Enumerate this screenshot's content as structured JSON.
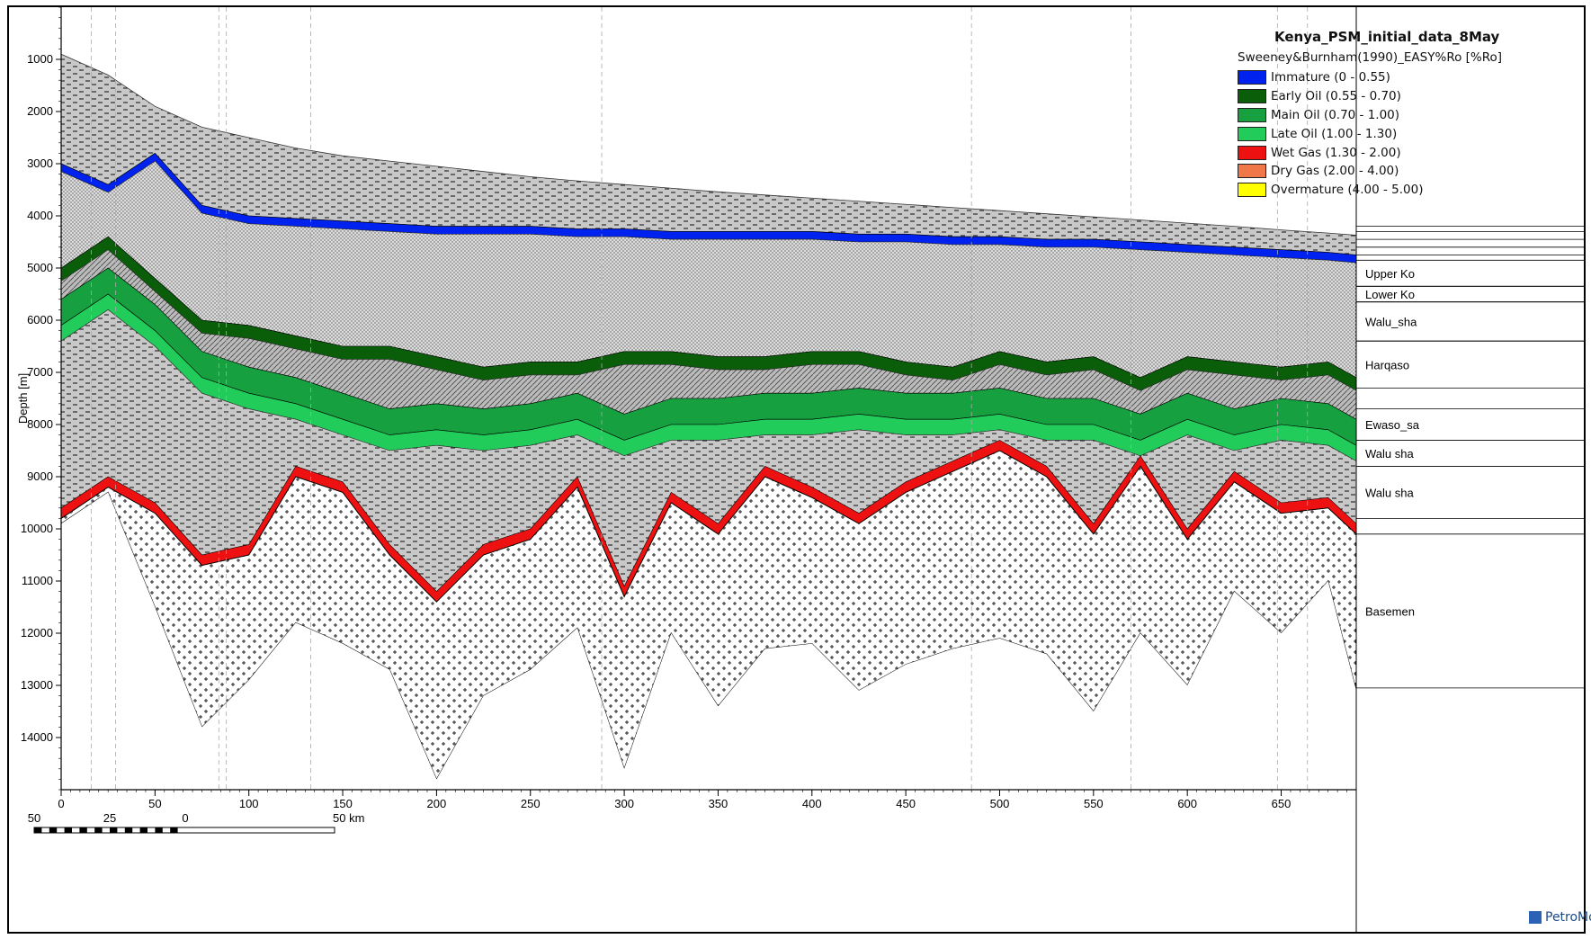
{
  "chart_data": {
    "type": "area",
    "title": "Kenya_PSM_initial_data_8May",
    "property_label": "Sweeney&Burnham(1990)_EASY%Ro [%Ro]",
    "xlabel": "",
    "ylabel": "Depth [m]",
    "xlim": [
      0,
      690
    ],
    "ylim": [
      15000,
      0
    ],
    "x_ticks": [
      "0",
      "50",
      "100",
      "150",
      "200",
      "250",
      "300",
      "350",
      "400",
      "450",
      "500",
      "550",
      "600",
      "650"
    ],
    "y_ticks": [
      "1000",
      "2000",
      "3000",
      "4000",
      "5000",
      "6000",
      "7000",
      "8000",
      "9000",
      "10000",
      "11000",
      "12000",
      "13000",
      "14000"
    ],
    "grid": "vertical dashed",
    "legend_position": "top-right",
    "legend": [
      {
        "label": "Immature (0 - 0.55)",
        "color": "#0022ee"
      },
      {
        "label": "Early Oil (0.55 - 0.70)",
        "color": "#0a5e0a"
      },
      {
        "label": "Main Oil (0.70 - 1.00)",
        "color": "#17a040"
      },
      {
        "label": "Late Oil (1.00 - 1.30)",
        "color": "#22cc5a"
      },
      {
        "label": "Wet Gas (1.30 - 2.00)",
        "color": "#ee1111"
      },
      {
        "label": "Dry Gas (2.00 - 4.00)",
        "color": "#f07848"
      },
      {
        "label": "Overmature (4.00 - 5.00)",
        "color": "#ffff00"
      }
    ],
    "layers": [
      "Upper Ko",
      "Lower Ko",
      "Walu_sha",
      "Harqaso",
      "Ewaso_sa",
      "Walu sha",
      "Walu sha",
      "Basemen"
    ],
    "surfaces": {
      "x": [
        0,
        25,
        50,
        75,
        100,
        125,
        150,
        175,
        200,
        225,
        250,
        275,
        300,
        325,
        350,
        375,
        400,
        425,
        450,
        475,
        500,
        525,
        550,
        575,
        600,
        625,
        650,
        675,
        690
      ],
      "top": [
        900,
        1300,
        1900,
        2300,
        2500,
        2700,
        2850,
        2950,
        3050,
        3150,
        3250,
        3330,
        3400,
        3470,
        3540,
        3600,
        3660,
        3720,
        3780,
        3840,
        3900,
        3960,
        4020,
        4080,
        4140,
        4200,
        4270,
        4330,
        4370
      ],
      "immature_top": [
        3000,
        3400,
        2800,
        3800,
        4000,
        4050,
        4100,
        4150,
        4200,
        4200,
        4200,
        4250,
        4250,
        4300,
        4300,
        4300,
        4300,
        4350,
        4350,
        4400,
        4400,
        4450,
        4450,
        4500,
        4550,
        4600,
        4650,
        4700,
        4750
      ],
      "early_oil_top": [
        5000,
        4400,
        5200,
        6000,
        6100,
        6300,
        6500,
        6500,
        6700,
        6900,
        6800,
        6800,
        6600,
        6600,
        6700,
        6700,
        6600,
        6600,
        6800,
        6900,
        6600,
        6800,
        6700,
        7100,
        6700,
        6800,
        6900,
        6800,
        7100
      ],
      "main_oil_top": [
        5600,
        5000,
        5700,
        6600,
        6900,
        7100,
        7400,
        7700,
        7600,
        7700,
        7600,
        7400,
        7800,
        7500,
        7500,
        7400,
        7400,
        7300,
        7400,
        7400,
        7300,
        7500,
        7500,
        7800,
        7400,
        7700,
        7500,
        7600,
        7900
      ],
      "basement_top": [
        9800,
        9200,
        9700,
        10700,
        10500,
        9000,
        9300,
        10500,
        11400,
        10500,
        10200,
        9200,
        11300,
        9500,
        10100,
        9000,
        9400,
        9900,
        9300,
        8900,
        8500,
        9000,
        10100,
        8800,
        10200,
        9100,
        9700,
        9600,
        10100
      ],
      "basement_bottom": [
        9900,
        9300,
        11500,
        13800,
        12900,
        11800,
        12200,
        12700,
        14800,
        13200,
        12700,
        11900,
        14600,
        12000,
        13400,
        12300,
        12200,
        13100,
        12600,
        12300,
        12100,
        12400,
        13500,
        12000,
        13000,
        11200,
        12000,
        11000,
        13100
      ]
    }
  },
  "scale_bar": {
    "labels": [
      "50",
      "25",
      "0",
      "50  km"
    ]
  },
  "branding": {
    "text": "PetroMod"
  }
}
